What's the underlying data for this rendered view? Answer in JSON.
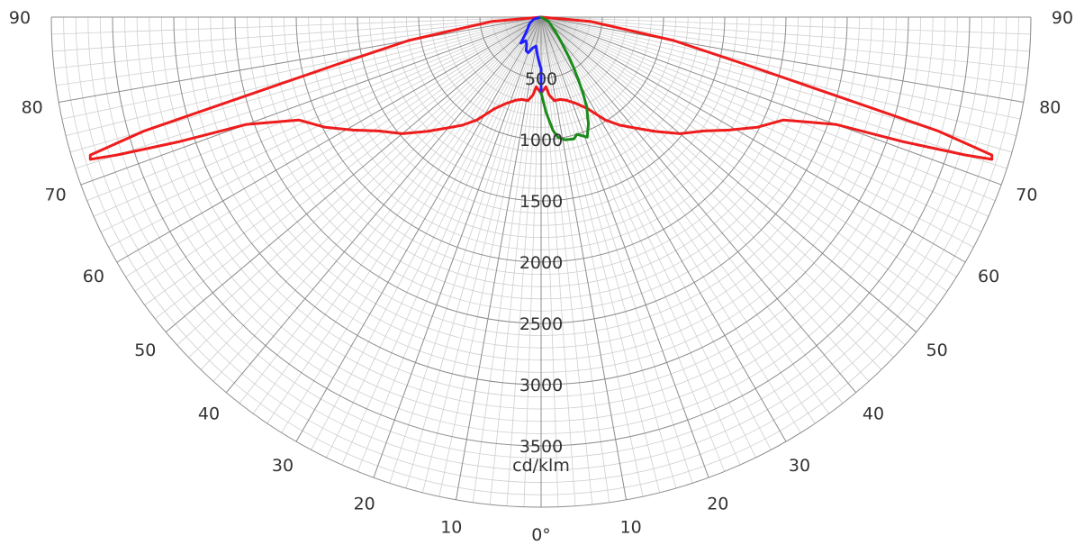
{
  "chart_data": {
    "type": "polar",
    "unit_label": "cd/klm",
    "angle_unit": "deg",
    "angle_range": [
      -90,
      90
    ],
    "angle_ticks": [
      {
        "angle": -90,
        "label": "90"
      },
      {
        "angle": -80,
        "label": "80"
      },
      {
        "angle": -70,
        "label": "70"
      },
      {
        "angle": -60,
        "label": "60"
      },
      {
        "angle": -50,
        "label": "50"
      },
      {
        "angle": -40,
        "label": "40"
      },
      {
        "angle": -30,
        "label": "30"
      },
      {
        "angle": -20,
        "label": "20"
      },
      {
        "angle": -10,
        "label": "10"
      },
      {
        "angle": 0,
        "label": "0°"
      },
      {
        "angle": 10,
        "label": "10"
      },
      {
        "angle": 20,
        "label": "20"
      },
      {
        "angle": 30,
        "label": "30"
      },
      {
        "angle": 40,
        "label": "40"
      },
      {
        "angle": 50,
        "label": "50"
      },
      {
        "angle": 60,
        "label": "60"
      },
      {
        "angle": 70,
        "label": "70"
      },
      {
        "angle": 80,
        "label": "80"
      },
      {
        "angle": 90,
        "label": "90"
      }
    ],
    "radial_range": [
      0,
      4000
    ],
    "radial_ticks": [
      500,
      1000,
      1500,
      2000,
      2500,
      3000,
      3500
    ],
    "radial_minor_step": 100,
    "angle_minor_step": 2,
    "grid": true,
    "colors": {
      "series_red": "#ee1c1c",
      "series_blue": "#1f1fff",
      "series_green": "#1a8a1a",
      "grid_major": "#8c8c8c",
      "grid_minor": "#cfcfcf"
    },
    "series": [
      {
        "color": "#ee1c1c",
        "points": [
          [
            -90,
            0
          ],
          [
            -85,
            400
          ],
          [
            -80,
            1100
          ],
          [
            -77,
            1700
          ],
          [
            -75,
            2550
          ],
          [
            -74,
            3370
          ],
          [
            -73,
            3850
          ],
          [
            -72.5,
            3860
          ],
          [
            -72,
            3640
          ],
          [
            -71,
            3120
          ],
          [
            -70,
            2560
          ],
          [
            -67,
            2150
          ],
          [
            -63,
            1980
          ],
          [
            -59,
            1790
          ],
          [
            -55,
            1620
          ],
          [
            -50,
            1480
          ],
          [
            -45,
            1320
          ],
          [
            -40,
            1180
          ],
          [
            -36,
            1090
          ],
          [
            -32,
            990
          ],
          [
            -27,
            840
          ],
          [
            -22,
            760
          ],
          [
            -17,
            710
          ],
          [
            -13,
            690
          ],
          [
            -9,
            690
          ],
          [
            -6,
            640
          ],
          [
            -4,
            570
          ],
          [
            0,
            620
          ],
          [
            4,
            570
          ],
          [
            6,
            640
          ],
          [
            9,
            690
          ],
          [
            13,
            690
          ],
          [
            17,
            710
          ],
          [
            22,
            760
          ],
          [
            27,
            840
          ],
          [
            32,
            990
          ],
          [
            36,
            1090
          ],
          [
            40,
            1180
          ],
          [
            45,
            1320
          ],
          [
            50,
            1480
          ],
          [
            55,
            1620
          ],
          [
            59,
            1790
          ],
          [
            63,
            1980
          ],
          [
            67,
            2150
          ],
          [
            70,
            2560
          ],
          [
            71,
            3120
          ],
          [
            72,
            3640
          ],
          [
            72.5,
            3860
          ],
          [
            73,
            3850
          ],
          [
            74,
            3370
          ],
          [
            75,
            2550
          ],
          [
            77,
            1700
          ],
          [
            80,
            1100
          ],
          [
            85,
            400
          ],
          [
            90,
            0
          ]
        ]
      },
      {
        "color": "#1f1fff",
        "points": [
          [
            -90,
            0
          ],
          [
            -75,
            60
          ],
          [
            -60,
            110
          ],
          [
            -50,
            140
          ],
          [
            -42,
            200
          ],
          [
            -38,
            270
          ],
          [
            -33,
            230
          ],
          [
            -28,
            250
          ],
          [
            -24,
            300
          ],
          [
            -20,
            310
          ],
          [
            -15,
            260
          ],
          [
            -10,
            240
          ],
          [
            -5,
            320
          ],
          [
            -2,
            380
          ],
          [
            0,
            420
          ],
          [
            0,
            620
          ]
        ]
      },
      {
        "color": "#1a8a1a",
        "points": [
          [
            0,
            620
          ],
          [
            3,
            780
          ],
          [
            6,
            930
          ],
          [
            8,
            990
          ],
          [
            11,
            1020
          ],
          [
            15,
            1030
          ],
          [
            17,
            1000
          ],
          [
            21,
            1050
          ],
          [
            24,
            950
          ],
          [
            25,
            900
          ],
          [
            27,
            820
          ],
          [
            29,
            700
          ],
          [
            31,
            580
          ],
          [
            33,
            480
          ],
          [
            35,
            390
          ],
          [
            39,
            260
          ],
          [
            45,
            160
          ],
          [
            60,
            70
          ],
          [
            90,
            0
          ]
        ]
      }
    ]
  }
}
